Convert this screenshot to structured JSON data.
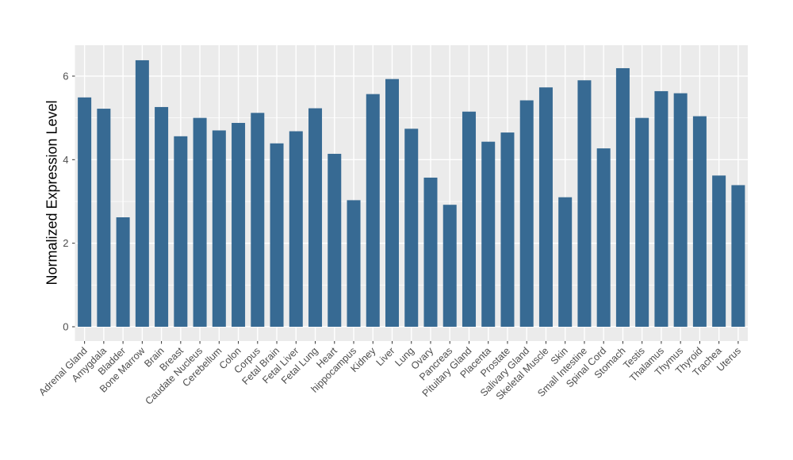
{
  "figure": {
    "background": "#ffffff"
  },
  "chart_data": {
    "type": "bar",
    "title": "",
    "xlabel": "",
    "ylabel": "Normalized Expression Level",
    "legend": "none",
    "grid": "on",
    "panel_bg": "#ebebeb",
    "grid_color": "#ffffff",
    "bar_color": "#376a93",
    "axis_text_color": "#4d4d4d",
    "axis_title_color": "#000000",
    "tick_mark_color": "#333333",
    "ylim": [
      0,
      6.74
    ],
    "yticks": [
      0,
      2,
      4,
      6
    ],
    "minor_yticks": [
      1,
      3,
      5
    ],
    "categories": [
      "Adrenal Gland",
      "Amygdala",
      "Bladder",
      "Bone Marrow",
      "Brain",
      "Breast",
      "Caudate Nucleus",
      "Cerebellum",
      "Colon",
      "Corpus",
      "Fetal Brain",
      "Fetal Liver",
      "Fetal Lung",
      "Heart",
      "hippocampus",
      "Kidney",
      "Liver",
      "Lung",
      "Ovary",
      "Pancreas",
      "Pituitary Gland",
      "Placenta",
      "Prostate",
      "Salivary Gland",
      "Skeletal Muscle",
      "Skin",
      "Small Intestine",
      "Spinal Cord",
      "Stomach",
      "Testis",
      "Thalamus",
      "Thymus",
      "Thyroid",
      "Trachea",
      "Uterus"
    ],
    "values": [
      5.49,
      5.22,
      2.62,
      6.38,
      5.26,
      4.56,
      5.0,
      4.7,
      4.88,
      5.12,
      4.39,
      4.68,
      5.23,
      4.14,
      3.03,
      5.57,
      5.93,
      4.74,
      3.57,
      2.92,
      5.15,
      4.43,
      4.65,
      5.42,
      5.73,
      3.1,
      5.9,
      4.27,
      6.19,
      5.0,
      5.64,
      5.59,
      5.04,
      3.62,
      3.39
    ]
  }
}
